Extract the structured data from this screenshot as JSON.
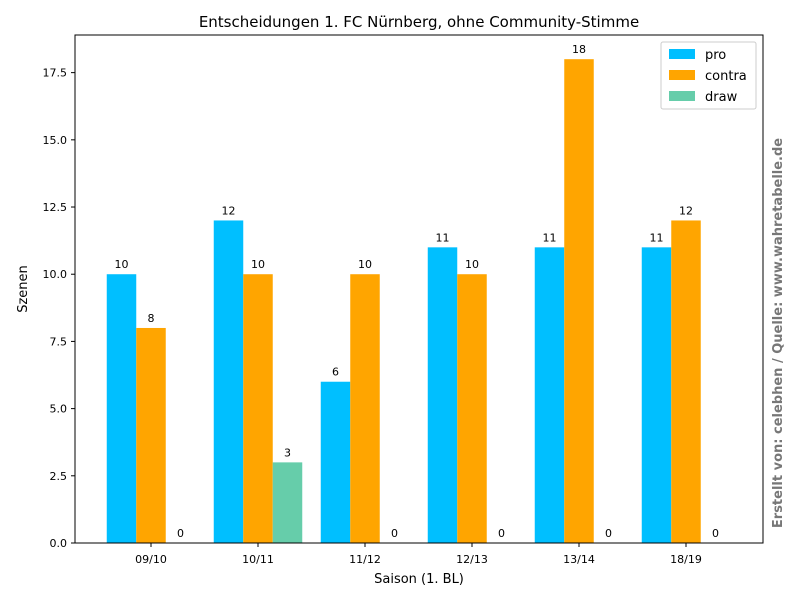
{
  "chart_data": {
    "type": "bar",
    "title": "Entscheidungen 1. FC Nürnberg, ohne Community-Stimme",
    "xlabel": "Saison (1. BL)",
    "ylabel": "Szenen",
    "ylim": [
      0,
      18.9
    ],
    "yticks": [
      "0.0",
      "2.5",
      "5.0",
      "7.5",
      "10.0",
      "12.5",
      "15.0",
      "17.5"
    ],
    "categories": [
      "09/10",
      "10/11",
      "11/12",
      "12/13",
      "13/14",
      "18/19"
    ],
    "series": [
      {
        "name": "pro",
        "color": "#00bfff",
        "values": [
          10,
          12,
          6,
          11,
          11,
          11
        ]
      },
      {
        "name": "contra",
        "color": "#ffa500",
        "values": [
          8,
          10,
          10,
          10,
          18,
          12
        ]
      },
      {
        "name": "draw",
        "color": "#66cdaa",
        "values": [
          0,
          3,
          0,
          0,
          0,
          0
        ]
      }
    ],
    "legend_position": "top-right",
    "grid": false,
    "source_text": "Erstellt von: celebhen / Quelle: www.wahretabelle.de"
  }
}
